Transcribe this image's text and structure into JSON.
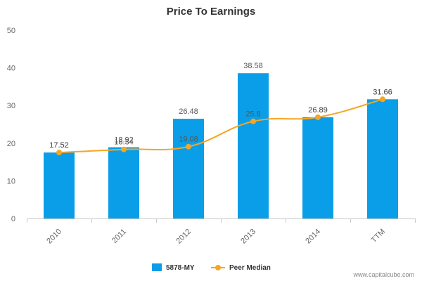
{
  "chart_data": {
    "type": "bar",
    "title": "Price To Earnings",
    "xlabel": "",
    "ylabel": "",
    "categories": [
      "2010",
      "2011",
      "2012",
      "2013",
      "2014",
      "TTM"
    ],
    "ylim": [
      0,
      50
    ],
    "yticks": [
      0,
      10,
      20,
      30,
      40,
      50
    ],
    "grid": false,
    "legend_position": "bottom-center",
    "series": [
      {
        "name": "5878-MY",
        "type": "bar",
        "color": "#0a9ee8",
        "values": [
          17.52,
          18.92,
          26.48,
          38.58,
          26.89,
          31.66
        ],
        "labels": [
          "17.52",
          "18.92",
          "26.48",
          "38.58",
          "26.89",
          "31.66"
        ]
      },
      {
        "name": "Peer Median",
        "type": "line",
        "color": "#f5a623",
        "values": [
          17.52,
          18.34,
          19.08,
          25.8,
          26.89,
          31.66
        ],
        "labels": [
          "17.52",
          "18.34",
          "19.08",
          "25.8",
          "26.89",
          "31.66"
        ]
      }
    ]
  },
  "watermark": "www.capitalcube.com"
}
